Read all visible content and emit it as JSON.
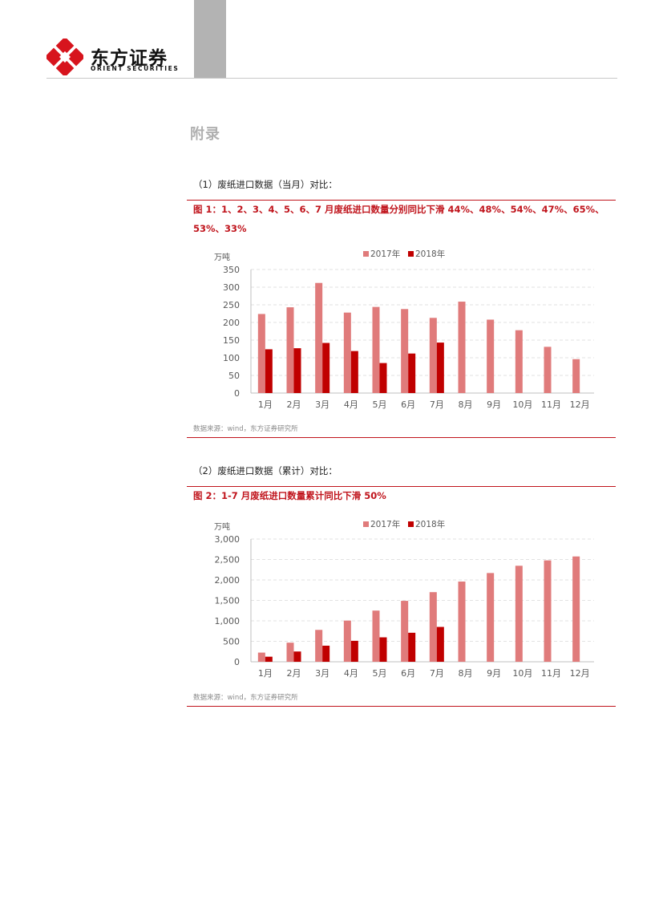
{
  "header": {
    "brand_cn": "东方证券",
    "brand_en": "ORIENT SECURITIES",
    "colors": {
      "accent": "#c0141c",
      "block": "#b3b3b3"
    }
  },
  "appendix_title": "附录",
  "section1": {
    "heading": "（1）废纸进口数据（当月）对比：",
    "figure_title": "图 1：1、2、3、4、5、6、7 月废纸进口数量分别同比下滑 44%、48%、54%、47%、65%、53%、33%",
    "source": "数据来源：wind，东方证券研究所"
  },
  "section2": {
    "heading": "（2）废纸进口数据（累计）对比：",
    "figure_title": "图 2：1-7 月废纸进口数量累计同比下滑 50%",
    "source": "数据来源：wind，东方证券研究所"
  },
  "chart_data": [
    {
      "type": "bar",
      "ylabel": "万吨",
      "ylim": [
        0,
        350
      ],
      "yticks": [
        "350",
        "300",
        "250",
        "200",
        "150",
        "100",
        "50",
        "0"
      ],
      "grid": true,
      "legend_position": "top-center",
      "categories": [
        "1月",
        "2月",
        "3月",
        "4月",
        "5月",
        "6月",
        "7月",
        "8月",
        "9月",
        "10月",
        "11月",
        "12月"
      ],
      "series": [
        {
          "name": "2017年",
          "color": "#e07b7b",
          "values": [
            224,
            243,
            312,
            228,
            244,
            238,
            213,
            259,
            208,
            178,
            131,
            96
          ]
        },
        {
          "name": "2018年",
          "color": "#c00000",
          "values": [
            124,
            127,
            142,
            119,
            85,
            112,
            143,
            null,
            null,
            null,
            null,
            null
          ]
        }
      ]
    },
    {
      "type": "bar",
      "ylabel": "万吨",
      "ylim": [
        0,
        3000
      ],
      "yticks": [
        "3,000",
        "2,500",
        "2,000",
        "1,500",
        "1,000",
        "500",
        "0"
      ],
      "grid": true,
      "legend_position": "top-center",
      "categories": [
        "1月",
        "2月",
        "3月",
        "4月",
        "5月",
        "6月",
        "7月",
        "8月",
        "9月",
        "10月",
        "11月",
        "12月"
      ],
      "series": [
        {
          "name": "2017年",
          "color": "#e07b7b",
          "values": [
            224,
            467,
            779,
            1007,
            1251,
            1489,
            1702,
            1961,
            2169,
            2347,
            2478,
            2574
          ]
        },
        {
          "name": "2018年",
          "color": "#c00000",
          "values": [
            124,
            251,
            393,
            512,
            597,
            709,
            852,
            null,
            null,
            null,
            null,
            null
          ]
        }
      ]
    }
  ]
}
